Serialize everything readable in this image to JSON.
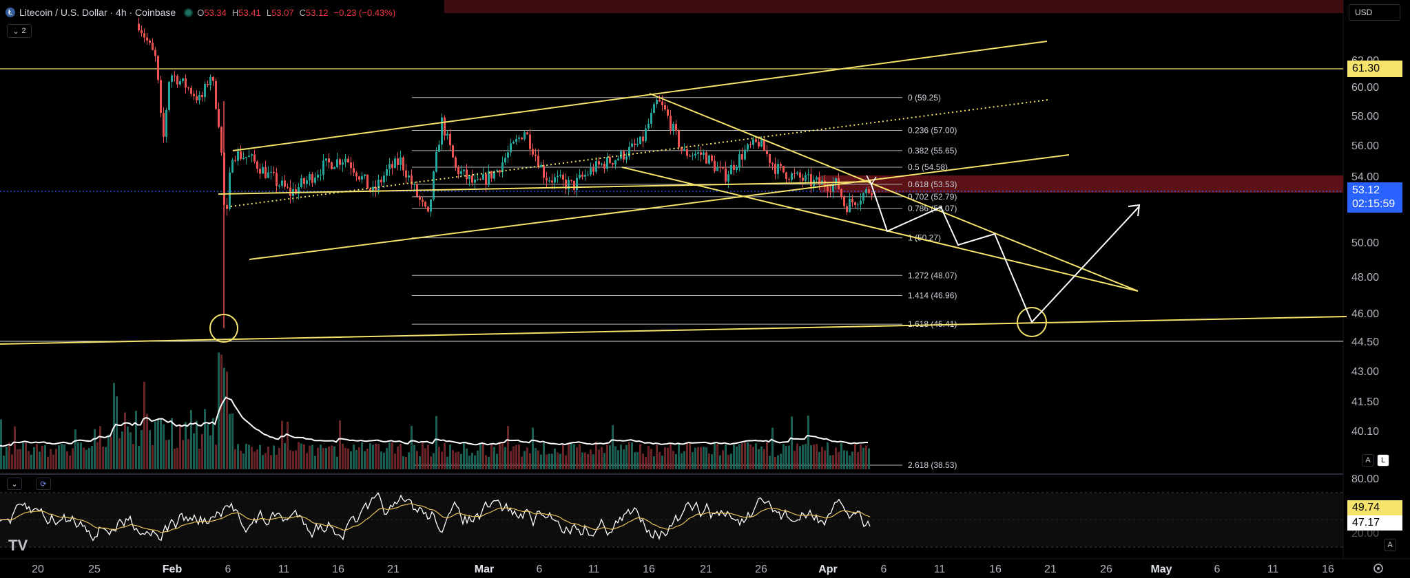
{
  "header": {
    "logo_letter": "Ł",
    "symbol_title": "Litecoin / U.S. Dollar · 4h · Coinbase",
    "ohlc": [
      {
        "key": "O",
        "value": "53.34"
      },
      {
        "key": "H",
        "value": "53.41"
      },
      {
        "key": "L",
        "value": "53.07"
      },
      {
        "key": "C",
        "value": "53.12"
      },
      {
        "key": "",
        "value": "−0.23 (−0.43%)"
      }
    ],
    "indicator_count": "2",
    "currency_button": "USD"
  },
  "price_axis": {
    "ticks": [
      "62.00",
      "60.00",
      "58.00",
      "56.00",
      "54.00",
      "50.00",
      "48.00",
      "46.00",
      "44.50",
      "43.00",
      "41.50",
      "40.10"
    ],
    "tick_values": [
      62,
      60,
      58,
      56,
      54,
      50,
      48,
      46,
      44.5,
      43,
      41.5,
      40.1
    ],
    "level_tag": "61.30",
    "current_price": "53.12",
    "countdown": "02:15:59",
    "auto_button": "A",
    "log_button": "L"
  },
  "fib_levels": [
    {
      "label": "0 (59.25)",
      "value": 59.25
    },
    {
      "label": "0.236 (57.00)",
      "value": 57.0
    },
    {
      "label": "0.382 (55.65)",
      "value": 55.65
    },
    {
      "label": "0.5 (54.58)",
      "value": 54.58
    },
    {
      "label": "0.618 (53.53)",
      "value": 53.53
    },
    {
      "label": "0.702 (52.79)",
      "value": 52.79
    },
    {
      "label": "0.786 (52.07)",
      "value": 52.07
    },
    {
      "label": "1 (50.27)",
      "value": 50.27
    },
    {
      "label": "1.272 (48.07)",
      "value": 48.07
    },
    {
      "label": "1.414 (46.96)",
      "value": 46.96
    },
    {
      "label": "1.618 (45.41)",
      "value": 45.41
    },
    {
      "label": "2.618 (38.53)",
      "value": 38.53
    }
  ],
  "oscillator": {
    "ticks": [
      "80.00"
    ],
    "value_a": "49.74",
    "value_b": "47.17",
    "auto_button": "A",
    "lower_partial_tick": "20.00"
  },
  "time_axis": {
    "labels": [
      "20",
      "25",
      "Feb",
      "6",
      "11",
      "16",
      "21",
      "Mar",
      "6",
      "11",
      "16",
      "21",
      "26",
      "Apr",
      "6",
      "11",
      "16",
      "21",
      "26",
      "May",
      "6",
      "11",
      "16"
    ],
    "bold": [
      "Feb",
      "Mar",
      "Apr",
      "May"
    ]
  },
  "watermark": "TV",
  "colors": {
    "bull": "#26a69a",
    "bear": "#ef5350",
    "drawing": "#f6e36b",
    "price_line": "#2962ff",
    "resistance_zone": "#5c1216"
  },
  "icons": [
    "collapse-chevron-icon",
    "refresh-icon",
    "settings-gear-icon"
  ]
}
